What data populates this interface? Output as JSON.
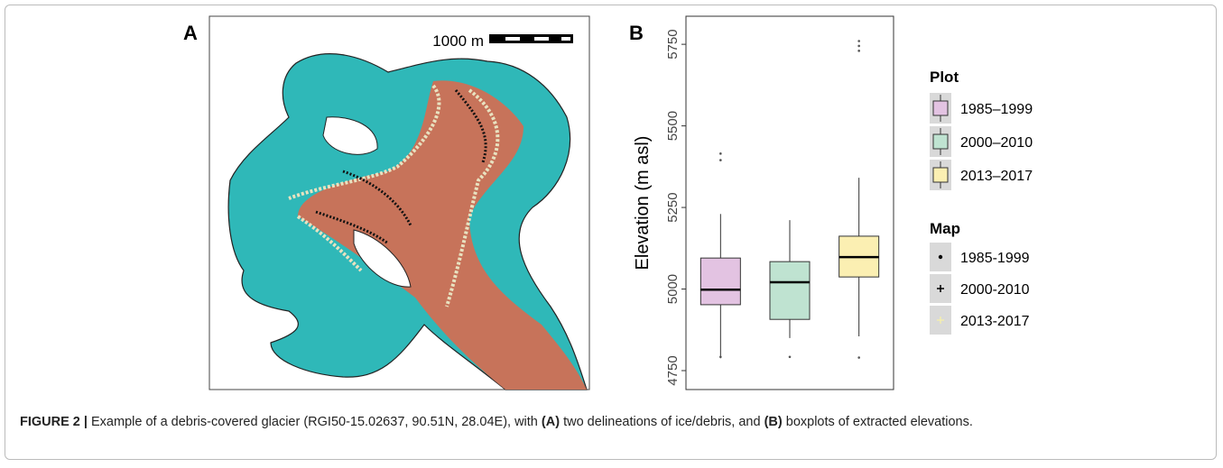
{
  "panel_a": {
    "label": "A",
    "scale_label": "1000 m"
  },
  "chart_data": {
    "type": "boxplot",
    "label": "B",
    "ylabel": "Elevation (m asl)",
    "ylim": [
      4692,
      5836
    ],
    "yticks": [
      4750,
      5000,
      5250,
      5500,
      5750
    ],
    "legend_title": "Plot",
    "series": [
      {
        "name": "1985–1999",
        "color": "#e3c3e2",
        "whisker_low": 4788,
        "q1": 4952,
        "median": 4998,
        "q3": 5095,
        "whisker_high": 5230,
        "outliers": [
          4792,
          5395,
          5415
        ]
      },
      {
        "name": "2000–2010",
        "color": "#bfe3d1",
        "whisker_low": 4850,
        "q1": 4907,
        "median": 5021,
        "q3": 5084,
        "whisker_high": 5211,
        "outliers": [
          4792
        ]
      },
      {
        "name": "2013–2017",
        "color": "#fbefb2",
        "whisker_low": 4855,
        "q1": 5037,
        "median": 5098,
        "q3": 5162,
        "whisker_high": 5341,
        "outliers": [
          4790,
          5730,
          5745,
          5760
        ]
      }
    ],
    "map_legend": {
      "title": "Map",
      "items": [
        {
          "name": "1985-1999",
          "color": "#000000",
          "marker": "dot"
        },
        {
          "name": "2000-2010",
          "color": "#000000",
          "marker": "plus"
        },
        {
          "name": "2013-2017",
          "color": "#f3eeb0",
          "marker": "plus"
        }
      ]
    }
  },
  "caption": {
    "lead": "FIGURE 2 |",
    "text1": "Example of a debris-covered glacier (RGI50-15.02637, 90.51N, 28.04E), with",
    "a": "(A)",
    "text2": "two delineations of ice/debris, and",
    "b": "(B)",
    "text3": "boxplots of extracted elevations."
  }
}
